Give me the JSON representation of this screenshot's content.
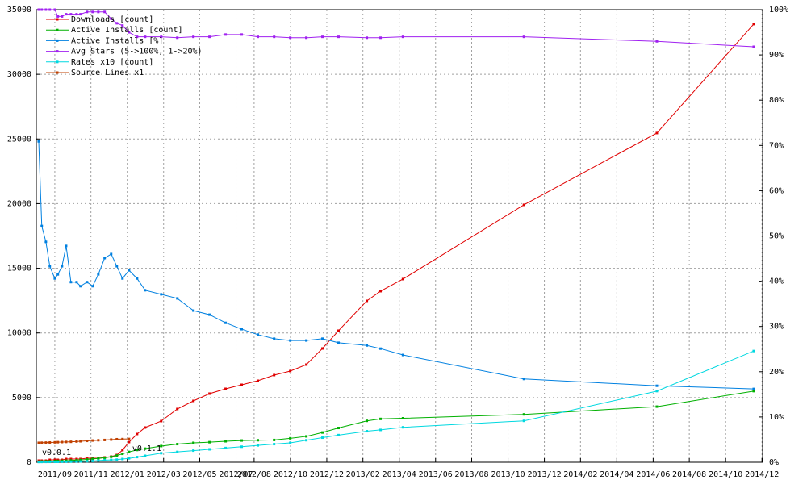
{
  "chart_data": {
    "type": "line",
    "x": [
      2011.593,
      2011.607,
      2011.626,
      2011.644,
      2011.667,
      2011.681,
      2011.7,
      2011.719,
      2011.741,
      2011.767,
      2011.785,
      2011.815,
      2011.841,
      2011.867,
      2011.896,
      2011.926,
      2011.952,
      2011.978,
      2012.008,
      2012.045,
      2012.082,
      2012.156,
      2012.23,
      2012.304,
      2012.378,
      2012.452,
      2012.526,
      2012.6,
      2012.675,
      2012.749,
      2012.823,
      2012.897,
      2012.971,
      2013.101,
      2013.164,
      2013.267,
      2013.823,
      2014.434,
      2014.879
    ],
    "series": [
      {
        "name": "Downloads [count]",
        "color": "#e00000",
        "values": [
          125,
          125,
          125,
          187,
          187,
          187,
          187,
          250,
          250,
          250,
          250,
          312,
          312,
          312,
          374,
          437,
          562,
          936,
          1560,
          2184,
          2683,
          3182,
          4118,
          4742,
          5304,
          5678,
          5990,
          6302,
          6739,
          7051,
          7550,
          8798,
          10171,
          12480,
          13229,
          14165,
          19906,
          25459,
          33883
        ]
      },
      {
        "name": "Active Installs [count]",
        "color": "#00b000",
        "values": [
          50,
          60,
          70,
          80,
          90,
          100,
          110,
          120,
          140,
          160,
          180,
          220,
          260,
          300,
          350,
          420,
          520,
          650,
          800,
          950,
          1050,
          1250,
          1400,
          1500,
          1550,
          1620,
          1680,
          1700,
          1720,
          1850,
          2000,
          2300,
          2650,
          3200,
          3350,
          3400,
          3700,
          4300,
          5500
        ]
      },
      {
        "name": "Active Installs [%]",
        "color": "#0080e0",
        "axis": "y2",
        "values": [
          70.9,
          52.2,
          48.7,
          43.3,
          40.6,
          41.5,
          43.3,
          47.8,
          39.8,
          39.8,
          38.9,
          39.8,
          38.9,
          41.5,
          45.1,
          46.0,
          43.3,
          40.6,
          42.4,
          40.6,
          38.0,
          37.1,
          36.2,
          33.5,
          32.6,
          30.8,
          29.4,
          28.2,
          27.3,
          26.9,
          26.9,
          27.3,
          26.4,
          25.8,
          25.1,
          23.7,
          18.4,
          16.9,
          16.2
        ]
      },
      {
        "name": "Avg Stars (5->100%, 1->20%)",
        "color": "#a020f0",
        "axis": "y2",
        "values": [
          100,
          100,
          100,
          100,
          100,
          98.5,
          98.5,
          99,
          99,
          99,
          99,
          99.5,
          99.5,
          99.5,
          99.5,
          98,
          97,
          96.5,
          95,
          94,
          94,
          94,
          93.8,
          94,
          94,
          94.5,
          94.5,
          94,
          94,
          93.8,
          93.8,
          94,
          94,
          93.8,
          93.8,
          94,
          94,
          93,
          91.8
        ]
      },
      {
        "name": "Rates x10 [count]",
        "color": "#00d8e0",
        "values": [
          20,
          22,
          25,
          28,
          30,
          33,
          36,
          40,
          45,
          52,
          60,
          80,
          100,
          130,
          160,
          180,
          200,
          250,
          300,
          400,
          500,
          700,
          800,
          900,
          1000,
          1100,
          1200,
          1300,
          1400,
          1500,
          1700,
          1900,
          2100,
          2400,
          2500,
          2700,
          3200,
          5500,
          8600
        ]
      },
      {
        "name": "Source Lines x1",
        "color": "#c04000",
        "values": [
          1500,
          1510,
          1520,
          1530,
          1540,
          1550,
          1560,
          1570,
          1580,
          1600,
          1620,
          1650,
          1680,
          1700,
          1720,
          1750,
          1780,
          1790,
          1800,
          null,
          null,
          null,
          null,
          null,
          null,
          null,
          null,
          null,
          null,
          null,
          null,
          null,
          null,
          null,
          null,
          null,
          null,
          null,
          null
        ]
      }
    ],
    "annotations": [
      {
        "text": "v0.0.1",
        "x": 2011.593,
        "y": 1500
      },
      {
        "text": "v0.1.1",
        "x": 2012.008,
        "y": 1800
      }
    ],
    "xlim": [
      2011.582,
      2014.92
    ],
    "xticks": [
      {
        "value": 2011.667,
        "label": "2011/09"
      },
      {
        "value": 2011.833,
        "label": "2011/11"
      },
      {
        "value": 2012,
        "label": "2012/01"
      },
      {
        "value": 2012.167,
        "label": "2012/03"
      },
      {
        "value": 2012.333,
        "label": "2012/05"
      },
      {
        "value": 2012.5,
        "label": "2012/07"
      },
      {
        "value": 2012.583,
        "label": "2012/08"
      },
      {
        "value": 2012.75,
        "label": "2012/10"
      },
      {
        "value": 2012.917,
        "label": "2012/12"
      },
      {
        "value": 2013.083,
        "label": "2013/02"
      },
      {
        "value": 2013.25,
        "label": "2013/04"
      },
      {
        "value": 2013.417,
        "label": "2013/06"
      },
      {
        "value": 2013.583,
        "label": "2013/08"
      },
      {
        "value": 2013.75,
        "label": "2013/10"
      },
      {
        "value": 2013.917,
        "label": "2013/12"
      },
      {
        "value": 2014.083,
        "label": "2014/02"
      },
      {
        "value": 2014.25,
        "label": "2014/04"
      },
      {
        "value": 2014.417,
        "label": "2014/06"
      },
      {
        "value": 2014.583,
        "label": "2014/08"
      },
      {
        "value": 2014.75,
        "label": "2014/10"
      },
      {
        "value": 2014.917,
        "label": "2014/12"
      }
    ],
    "ylim": [
      0,
      35000
    ],
    "yticks": [
      0,
      5000,
      10000,
      15000,
      20000,
      25000,
      30000,
      35000
    ],
    "y2lim": [
      0,
      100
    ],
    "y2ticks": [
      {
        "value": 0,
        "label": "0%"
      },
      {
        "value": 10,
        "label": "10%"
      },
      {
        "value": 20,
        "label": "20%"
      },
      {
        "value": 30,
        "label": "30%"
      },
      {
        "value": 40,
        "label": "40%"
      },
      {
        "value": 50,
        "label": "50%"
      },
      {
        "value": 60,
        "label": "60%"
      },
      {
        "value": 70,
        "label": "70%"
      },
      {
        "value": 80,
        "label": "80%"
      },
      {
        "value": 90,
        "label": "90%"
      },
      {
        "value": 100,
        "label": "100%"
      }
    ],
    "grid": true,
    "legend": "top-left"
  }
}
